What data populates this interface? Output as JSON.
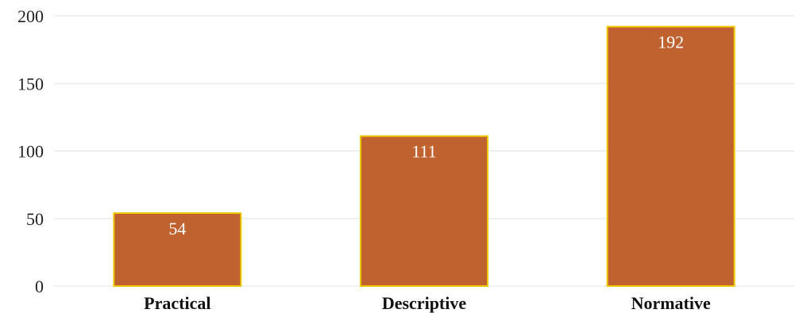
{
  "chart_data": {
    "type": "bar",
    "categories": [
      "Practical",
      "Descriptive",
      "Normative"
    ],
    "values": [
      54,
      111,
      192
    ],
    "data_labels": [
      "54",
      "111",
      "192"
    ],
    "title": "",
    "xlabel": "",
    "ylabel": "",
    "ylim": [
      0,
      200
    ],
    "yticks": [
      0,
      50,
      100,
      150,
      200
    ],
    "ytick_labels": [
      "0",
      "50",
      "100",
      "150",
      "200"
    ],
    "grid": true,
    "legend": "none",
    "colors": {
      "bar_fill": "#c0622f",
      "bar_edge": "#f0c800",
      "grid": "#e3e3e3",
      "data_label": "#ffffff"
    }
  }
}
